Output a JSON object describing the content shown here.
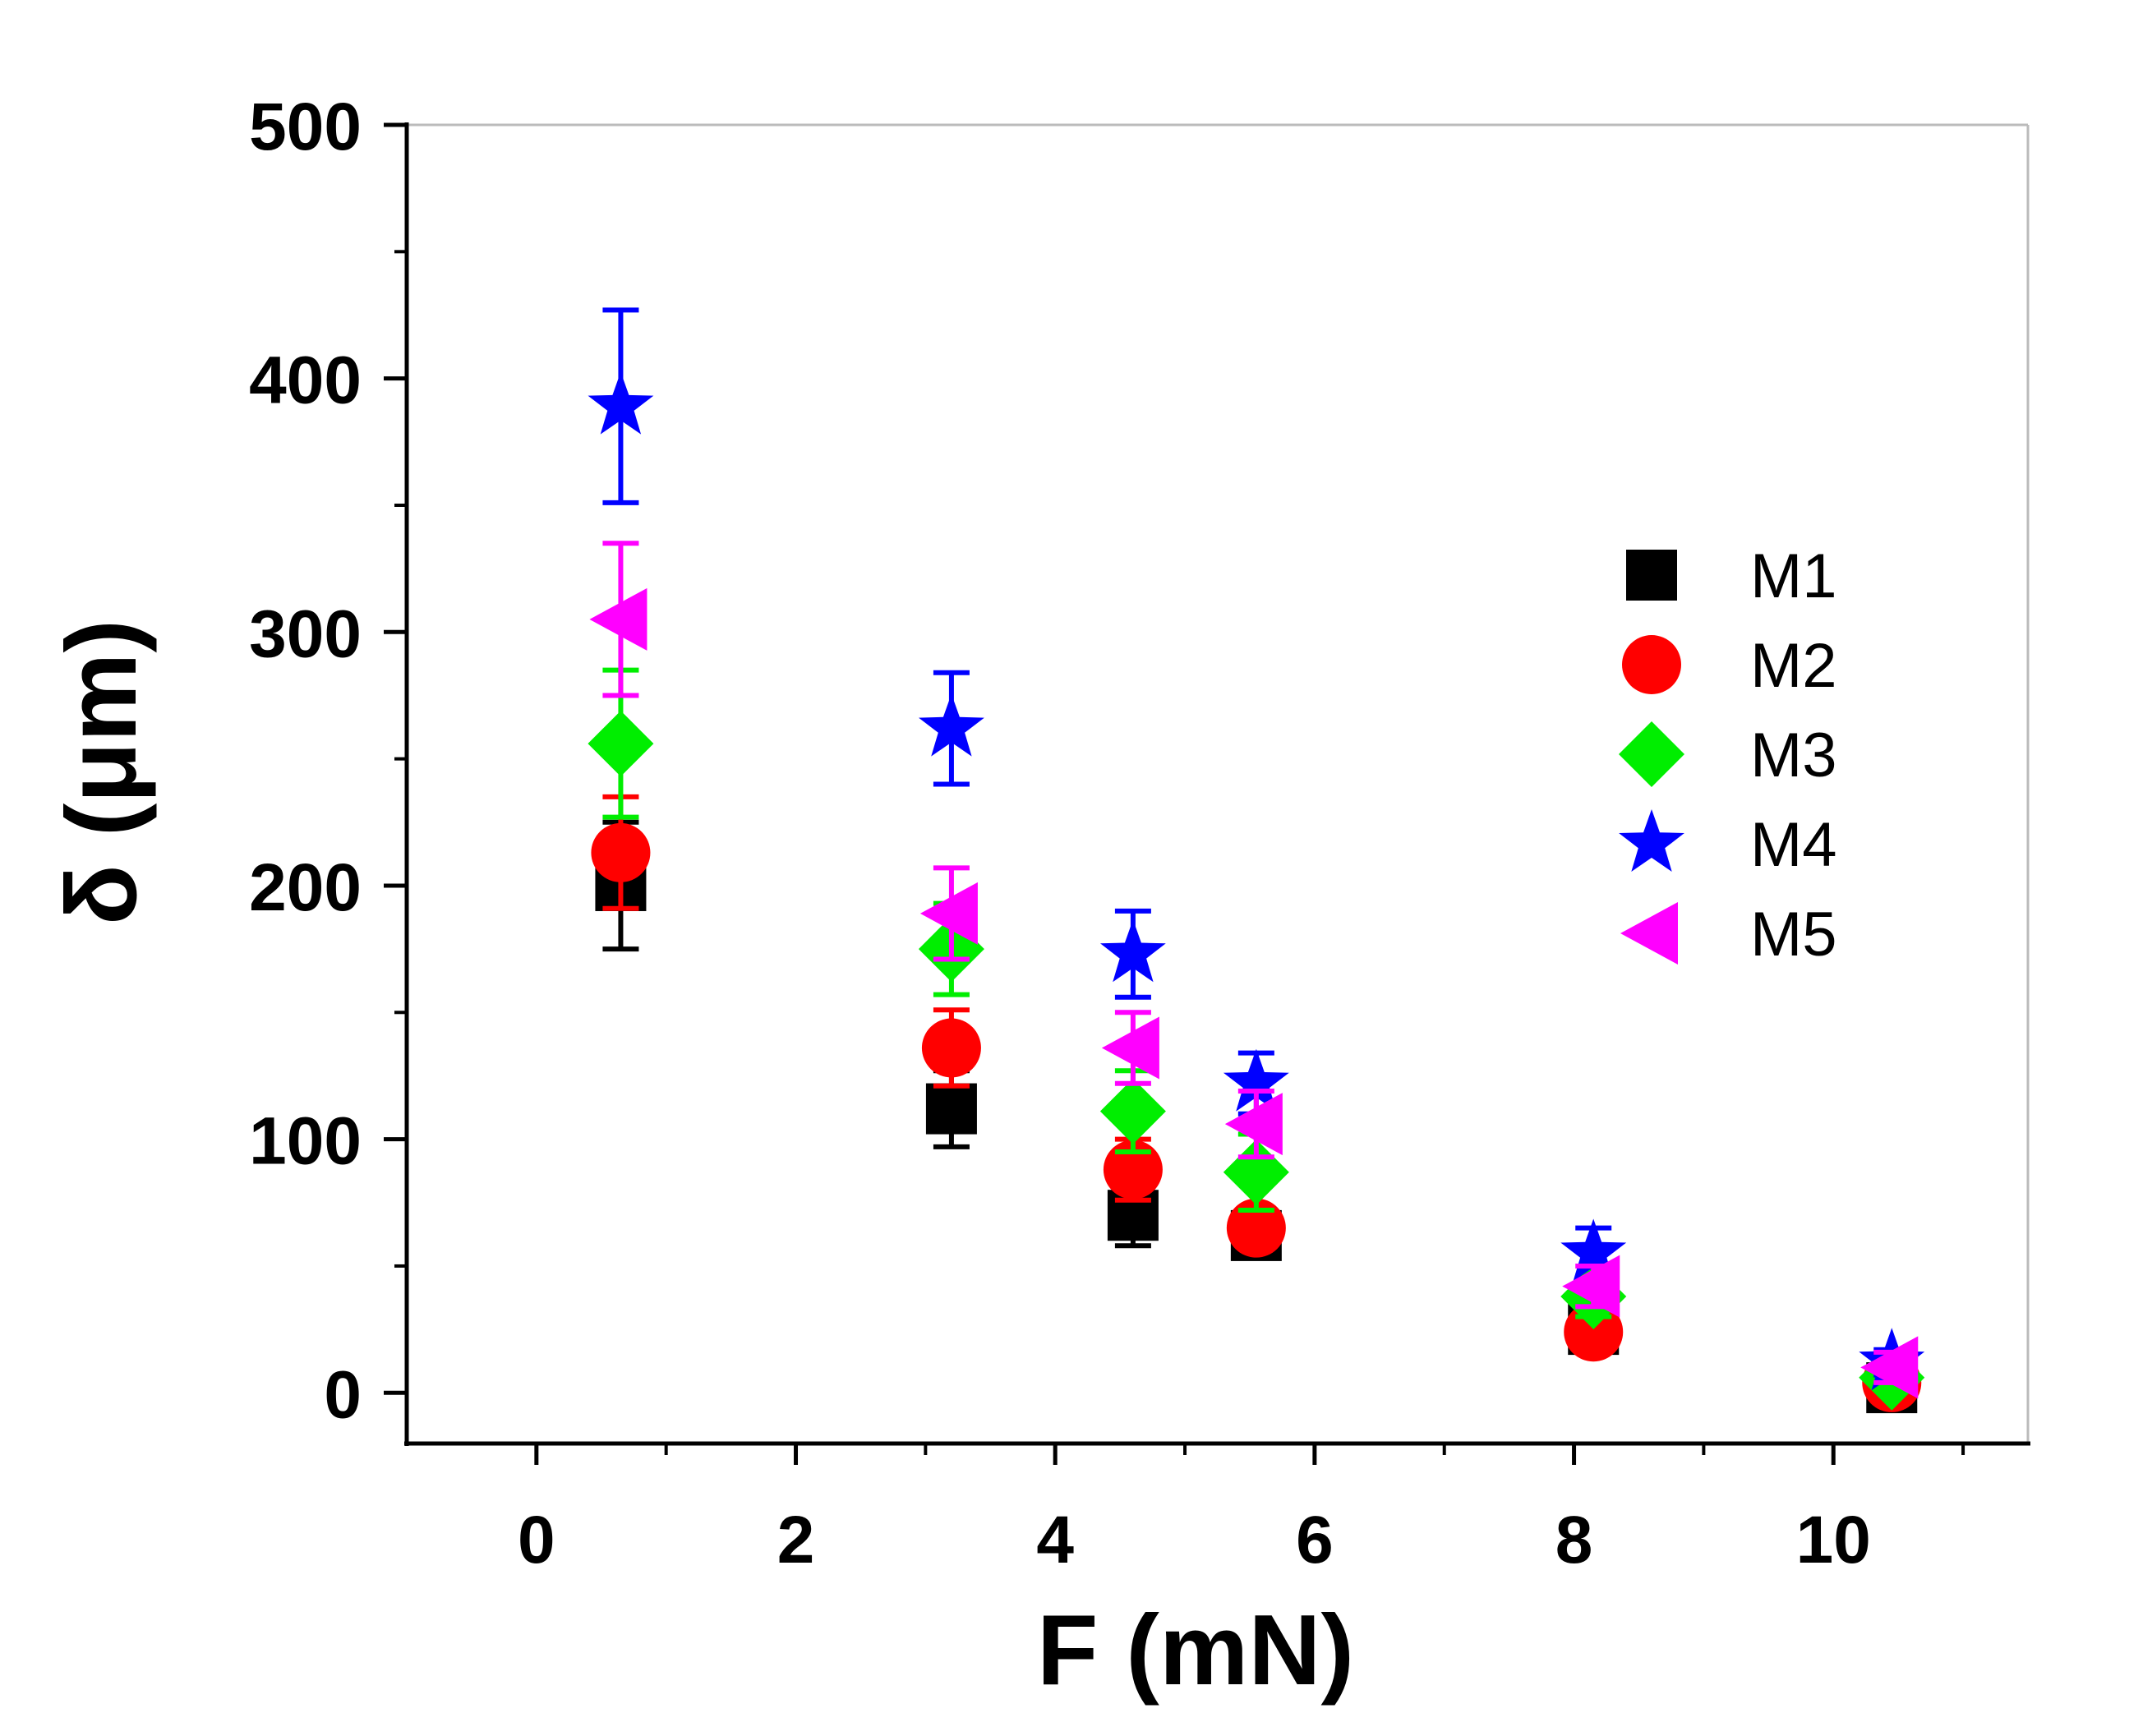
{
  "chart_data": {
    "type": "scatter",
    "title": "",
    "xlabel": "F (mN)",
    "ylabel": "δ (μm)",
    "xlim": [
      -1,
      11.5
    ],
    "ylim": [
      -20,
      500
    ],
    "x_ticks": [
      0,
      2,
      4,
      6,
      8,
      10
    ],
    "x_tick_labels": [
      "0",
      "2",
      "4",
      "6",
      "8",
      "10"
    ],
    "y_ticks": [
      0,
      100,
      200,
      300,
      400,
      500
    ],
    "y_tick_labels": [
      "0",
      "100",
      "200",
      "300",
      "400",
      "500"
    ],
    "grid": false,
    "legend_position": "right",
    "x": [
      0.65,
      3.2,
      4.6,
      5.55,
      8.15,
      10.45
    ],
    "series": [
      {
        "name": "M1",
        "marker": "square",
        "color": "#000000",
        "values": [
          200,
          112,
          70,
          62,
          25,
          2
        ],
        "errors": [
          25,
          15,
          12,
          8,
          6,
          3
        ]
      },
      {
        "name": "M2",
        "marker": "circle",
        "color": "#ff0000",
        "values": [
          213,
          136,
          88,
          65,
          24,
          4
        ],
        "errors": [
          22,
          15,
          12,
          8,
          7,
          3
        ]
      },
      {
        "name": "M3",
        "marker": "diamond",
        "color": "#00ee00",
        "values": [
          256,
          175,
          111,
          87,
          38,
          6
        ],
        "errors": [
          29,
          18,
          16,
          15,
          8,
          4
        ]
      },
      {
        "name": "M4",
        "marker": "star",
        "color": "#0000ff",
        "values": [
          389,
          262,
          173,
          122,
          55,
          12
        ],
        "errors": [
          38,
          22,
          17,
          12,
          10,
          5
        ]
      },
      {
        "name": "M5",
        "marker": "triangle-left",
        "color": "#ff00ff",
        "values": [
          305,
          189,
          136,
          106,
          42,
          10
        ],
        "errors": [
          30,
          18,
          14,
          13,
          8,
          6
        ]
      }
    ]
  }
}
